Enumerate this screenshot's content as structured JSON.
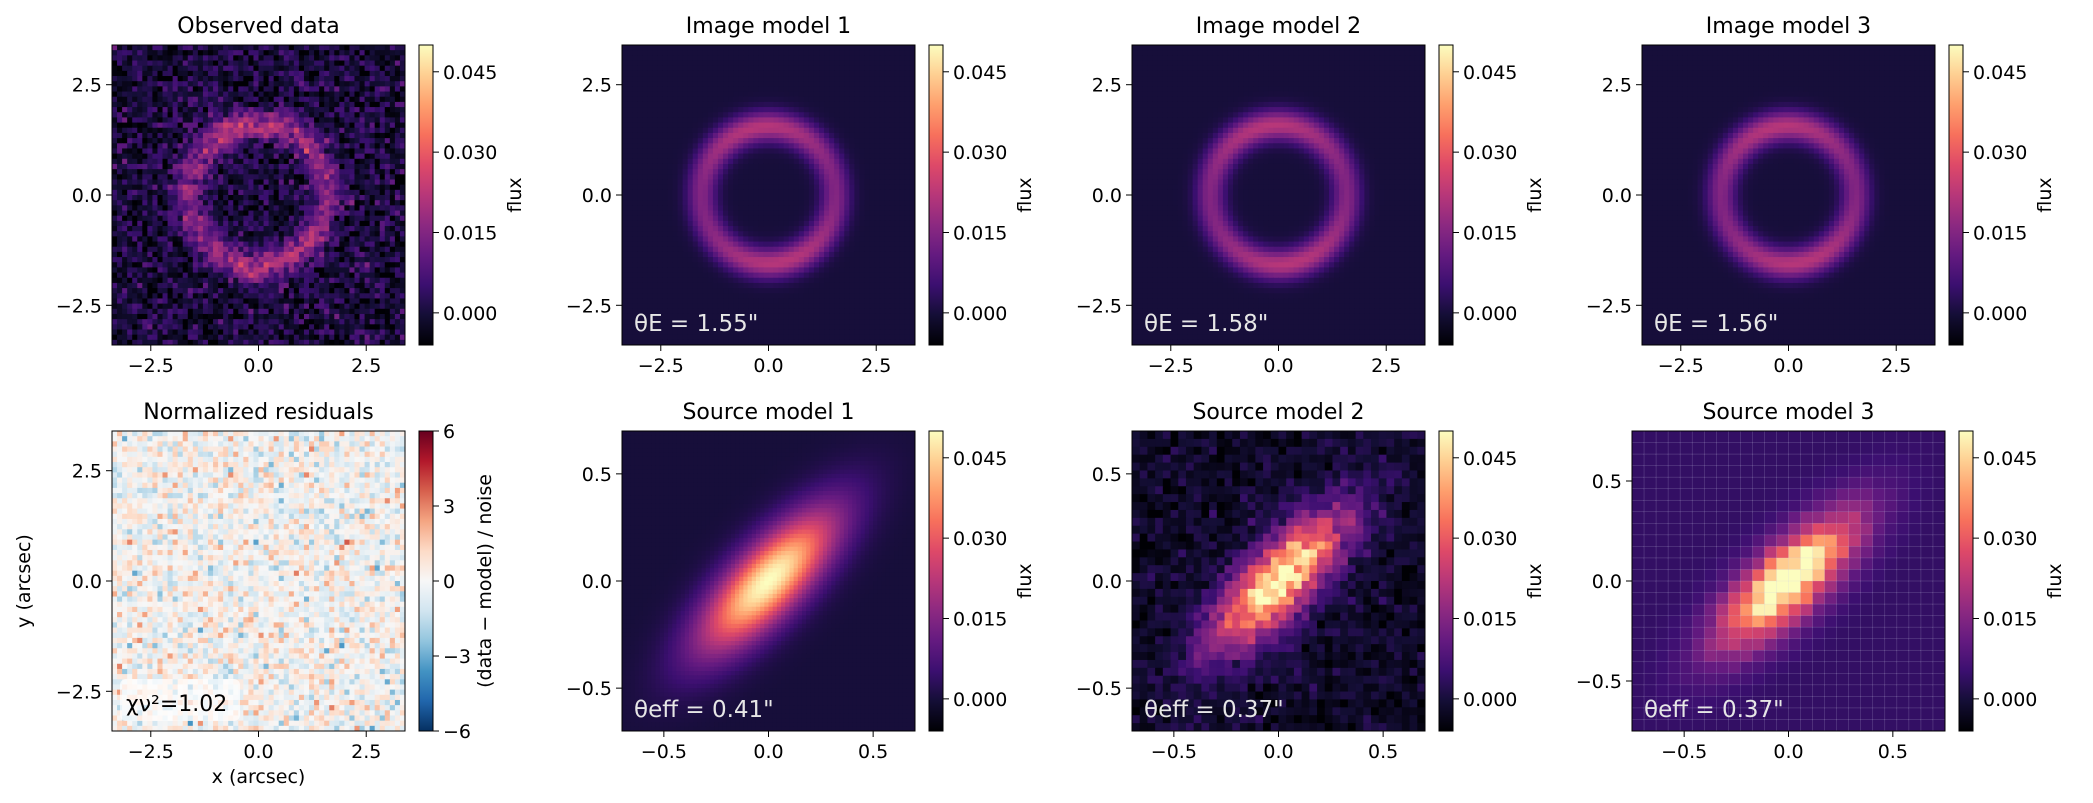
{
  "colors": {
    "magma": [
      "#000004",
      "#140e36",
      "#3b0f70",
      "#641a80",
      "#8c2981",
      "#b73779",
      "#de4968",
      "#f7705c",
      "#fe9f6d",
      "#fecf92",
      "#fcfdbf"
    ],
    "rdbu": [
      "#053061",
      "#2166ac",
      "#4393c3",
      "#92c5de",
      "#d1e5f0",
      "#f7f7f7",
      "#fddbc7",
      "#f4a582",
      "#d6604d",
      "#b2182b",
      "#67001f"
    ]
  },
  "chart_data": [
    {
      "type": "heatmap",
      "title": "Observed data",
      "cmap": "magma",
      "xlim": [
        -3.4,
        3.4
      ],
      "ylim": [
        -3.4,
        3.4
      ],
      "xticks": [
        "−2.5",
        "0.0",
        "2.5"
      ],
      "yticks": [
        "−2.5",
        "0.0",
        "2.5"
      ],
      "xlabel": "",
      "ylabel": "",
      "colorbar": {
        "label": "flux",
        "range": [
          -0.006,
          0.05
        ],
        "ticks": [
          "0.000",
          "0.015",
          "0.030",
          "0.045"
        ]
      },
      "annotation": ""
    },
    {
      "type": "heatmap",
      "title": "Image model 1",
      "cmap": "magma",
      "xlim": [
        -3.4,
        3.4
      ],
      "ylim": [
        -3.4,
        3.4
      ],
      "xticks": [
        "−2.5",
        "0.0",
        "2.5"
      ],
      "yticks": [
        "−2.5",
        "0.0",
        "2.5"
      ],
      "xlabel": "",
      "ylabel": "",
      "colorbar": {
        "label": "flux",
        "range": [
          -0.006,
          0.05
        ],
        "ticks": [
          "0.000",
          "0.015",
          "0.030",
          "0.045"
        ]
      },
      "annotation": "θE = 1.55\"",
      "theta_E": 1.55
    },
    {
      "type": "heatmap",
      "title": "Image model 2",
      "cmap": "magma",
      "xlim": [
        -3.4,
        3.4
      ],
      "ylim": [
        -3.4,
        3.4
      ],
      "xticks": [
        "−2.5",
        "0.0",
        "2.5"
      ],
      "yticks": [
        "−2.5",
        "0.0",
        "2.5"
      ],
      "xlabel": "",
      "ylabel": "",
      "colorbar": {
        "label": "flux",
        "range": [
          -0.006,
          0.05
        ],
        "ticks": [
          "0.000",
          "0.015",
          "0.030",
          "0.045"
        ]
      },
      "annotation": "θE = 1.58\"",
      "theta_E": 1.58
    },
    {
      "type": "heatmap",
      "title": "Image model 3",
      "cmap": "magma",
      "xlim": [
        -3.4,
        3.4
      ],
      "ylim": [
        -3.4,
        3.4
      ],
      "xticks": [
        "−2.5",
        "0.0",
        "2.5"
      ],
      "yticks": [
        "−2.5",
        "0.0",
        "2.5"
      ],
      "xlabel": "",
      "ylabel": "",
      "colorbar": {
        "label": "flux",
        "range": [
          -0.006,
          0.05
        ],
        "ticks": [
          "0.000",
          "0.015",
          "0.030",
          "0.045"
        ]
      },
      "annotation": "θE = 1.56\"",
      "theta_E": 1.56
    },
    {
      "type": "heatmap",
      "title": "Normalized residuals",
      "cmap": "rdbu",
      "xlim": [
        -3.4,
        3.4
      ],
      "ylim": [
        -3.4,
        3.4
      ],
      "xticks": [
        "−2.5",
        "0.0",
        "2.5"
      ],
      "yticks": [
        "−2.5",
        "0.0",
        "2.5"
      ],
      "xlabel": "x (arcsec)",
      "ylabel": "y (arcsec)",
      "colorbar": {
        "label": "(data − model) / noise",
        "range": [
          -6,
          6
        ],
        "ticks": [
          "−6",
          "−3",
          "0",
          "3",
          "6"
        ]
      },
      "annotation": "χν²=1.02",
      "chi2_nu": 1.02
    },
    {
      "type": "heatmap",
      "title": "Source model 1",
      "cmap": "magma",
      "xlim": [
        -0.7,
        0.7
      ],
      "ylim": [
        -0.7,
        0.7
      ],
      "xticks": [
        "−0.5",
        "0.0",
        "0.5"
      ],
      "yticks": [
        "−0.5",
        "0.0",
        "0.5"
      ],
      "xlabel": "",
      "ylabel": "",
      "colorbar": {
        "label": "flux",
        "range": [
          -0.006,
          0.05
        ],
        "ticks": [
          "0.000",
          "0.015",
          "0.030",
          "0.045"
        ]
      },
      "annotation": "θeff = 0.41\"",
      "theta_eff": 0.41
    },
    {
      "type": "heatmap",
      "title": "Source model 2",
      "cmap": "magma",
      "xlim": [
        -0.7,
        0.7
      ],
      "ylim": [
        -0.7,
        0.7
      ],
      "xticks": [
        "−0.5",
        "0.0",
        "0.5"
      ],
      "yticks": [
        "−0.5",
        "0.0",
        "0.5"
      ],
      "xlabel": "",
      "ylabel": "",
      "colorbar": {
        "label": "flux",
        "range": [
          -0.006,
          0.05
        ],
        "ticks": [
          "0.000",
          "0.015",
          "0.030",
          "0.045"
        ]
      },
      "annotation": "θeff = 0.37\"",
      "theta_eff": 0.37
    },
    {
      "type": "heatmap",
      "title": "Source model 3",
      "cmap": "magma",
      "xlim": [
        -0.75,
        0.75
      ],
      "ylim": [
        -0.75,
        0.75
      ],
      "xticks": [
        "−0.5",
        "0.0",
        "0.5"
      ],
      "yticks": [
        "−0.5",
        "0.0",
        "0.5"
      ],
      "xlabel": "",
      "ylabel": "",
      "colorbar": {
        "label": "flux",
        "range": [
          -0.006,
          0.05
        ],
        "ticks": [
          "0.000",
          "0.015",
          "0.030",
          "0.045"
        ]
      },
      "annotation": "θeff = 0.37\"",
      "theta_eff": 0.37
    }
  ]
}
